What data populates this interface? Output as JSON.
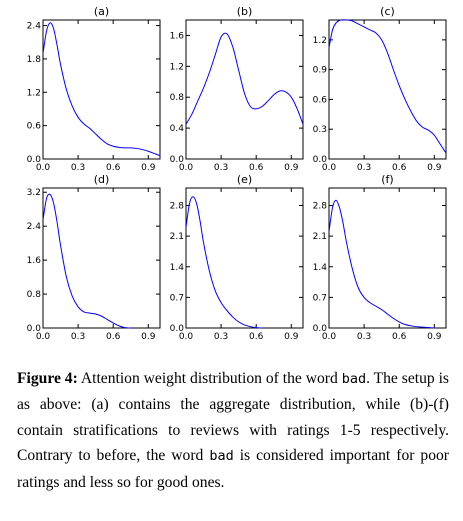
{
  "chart_data": [
    {
      "type": "line",
      "title": "(a)",
      "xlim": [
        0,
        1
      ],
      "ylim": [
        0,
        2.5
      ],
      "xticks": [
        "0.0",
        "0.3",
        "0.6",
        "0.9"
      ],
      "yticks": [
        "0.0",
        "0.6",
        "1.2",
        "1.8",
        "2.4"
      ],
      "series": [
        {
          "color": "#0000ff",
          "x": [
            0,
            0.03,
            0.06,
            0.09,
            0.12,
            0.15,
            0.2,
            0.25,
            0.3,
            0.35,
            0.4,
            0.45,
            0.5,
            0.55,
            0.6,
            0.65,
            0.7,
            0.75,
            0.8,
            0.85,
            0.9,
            0.95,
            1.0
          ],
          "y": [
            1.9,
            2.3,
            2.45,
            2.35,
            2.05,
            1.7,
            1.25,
            0.95,
            0.75,
            0.63,
            0.55,
            0.45,
            0.35,
            0.27,
            0.23,
            0.21,
            0.2,
            0.2,
            0.19,
            0.17,
            0.14,
            0.1,
            0.06
          ]
        }
      ]
    },
    {
      "type": "line",
      "title": "(b)",
      "xlim": [
        0,
        1
      ],
      "ylim": [
        0,
        1.8
      ],
      "xticks": [
        "0.0",
        "0.3",
        "0.6",
        "0.9"
      ],
      "yticks": [
        "0.0",
        "0.4",
        "0.8",
        "1.2",
        "1.6"
      ],
      "series": [
        {
          "color": "#0000ff",
          "x": [
            0,
            0.05,
            0.1,
            0.15,
            0.2,
            0.25,
            0.3,
            0.35,
            0.4,
            0.45,
            0.5,
            0.55,
            0.6,
            0.65,
            0.7,
            0.75,
            0.8,
            0.85,
            0.9,
            0.95,
            1.0
          ],
          "y": [
            0.45,
            0.58,
            0.75,
            0.92,
            1.12,
            1.35,
            1.58,
            1.62,
            1.45,
            1.15,
            0.85,
            0.68,
            0.65,
            0.68,
            0.75,
            0.83,
            0.88,
            0.87,
            0.8,
            0.65,
            0.45
          ]
        }
      ]
    },
    {
      "type": "line",
      "title": "(c)",
      "xlim": [
        0,
        1
      ],
      "ylim": [
        0,
        1.4
      ],
      "xticks": [
        "0.0",
        "0.3",
        "0.6",
        "0.9"
      ],
      "yticks": [
        "0.0",
        "0.3",
        "0.6",
        "0.9",
        "1.2"
      ],
      "series": [
        {
          "color": "#0000ff",
          "x": [
            0,
            0.03,
            0.06,
            0.1,
            0.15,
            0.2,
            0.25,
            0.3,
            0.35,
            0.4,
            0.45,
            0.5,
            0.55,
            0.6,
            0.65,
            0.7,
            0.75,
            0.8,
            0.85,
            0.9,
            0.95,
            1.0
          ],
          "y": [
            1.12,
            1.3,
            1.37,
            1.4,
            1.4,
            1.39,
            1.36,
            1.33,
            1.3,
            1.27,
            1.2,
            1.07,
            0.9,
            0.74,
            0.6,
            0.48,
            0.38,
            0.32,
            0.29,
            0.24,
            0.15,
            0.06
          ]
        }
      ]
    },
    {
      "type": "line",
      "title": "(d)",
      "xlim": [
        0,
        1
      ],
      "ylim": [
        0,
        3.3
      ],
      "xticks": [
        "0.0",
        "0.3",
        "0.6",
        "0.9"
      ],
      "yticks": [
        "0.0",
        "0.8",
        "1.6",
        "2.4",
        "3.2"
      ],
      "series": [
        {
          "color": "#0000ff",
          "x": [
            0,
            0.03,
            0.06,
            0.09,
            0.12,
            0.15,
            0.2,
            0.25,
            0.3,
            0.35,
            0.4,
            0.45,
            0.5,
            0.55,
            0.6,
            0.65,
            0.7,
            0.75
          ],
          "y": [
            2.55,
            3.05,
            3.15,
            2.95,
            2.5,
            1.95,
            1.2,
            0.75,
            0.5,
            0.38,
            0.35,
            0.33,
            0.28,
            0.2,
            0.12,
            0.05,
            0.01,
            0
          ]
        }
      ]
    },
    {
      "type": "line",
      "title": "(e)",
      "xlim": [
        0,
        1
      ],
      "ylim": [
        0,
        3.2
      ],
      "xticks": [
        "0.0",
        "0.3",
        "0.6",
        "0.9"
      ],
      "yticks": [
        "0.0",
        "0.7",
        "1.4",
        "2.1",
        "2.8"
      ],
      "series": [
        {
          "color": "#0000ff",
          "x": [
            0,
            0.03,
            0.06,
            0.09,
            0.12,
            0.15,
            0.2,
            0.25,
            0.3,
            0.35,
            0.4,
            0.45,
            0.5,
            0.55,
            0.6,
            0.65
          ],
          "y": [
            2.3,
            2.85,
            3.0,
            2.85,
            2.45,
            1.95,
            1.3,
            0.85,
            0.58,
            0.4,
            0.25,
            0.14,
            0.07,
            0.03,
            0.01,
            0
          ]
        }
      ]
    },
    {
      "type": "line",
      "title": "(f)",
      "xlim": [
        0,
        1
      ],
      "ylim": [
        0,
        3.2
      ],
      "xticks": [
        "0.0",
        "0.3",
        "0.6",
        "0.9"
      ],
      "yticks": [
        "0.0",
        "0.7",
        "1.4",
        "2.1",
        "2.8"
      ],
      "series": [
        {
          "color": "#0000ff",
          "x": [
            0,
            0.03,
            0.06,
            0.09,
            0.12,
            0.15,
            0.2,
            0.25,
            0.3,
            0.35,
            0.4,
            0.45,
            0.5,
            0.55,
            0.6,
            0.65,
            0.7,
            0.75,
            0.8,
            0.85,
            0.9
          ],
          "y": [
            2.2,
            2.75,
            2.92,
            2.75,
            2.4,
            1.95,
            1.35,
            0.92,
            0.7,
            0.58,
            0.5,
            0.42,
            0.32,
            0.22,
            0.14,
            0.08,
            0.05,
            0.03,
            0.02,
            0.01,
            0
          ]
        }
      ]
    }
  ],
  "caption": {
    "label": "Figure 4:",
    "text_1": " Attention weight distribution of the word ",
    "code_1": "bad",
    "text_2": ". The setup is as above: (a) contains the aggregate distribution, while (b)-(f) contain stratifications to reviews with ratings 1-5 respectively. Contrary to before, the word ",
    "code_2": "bad",
    "text_3": " is considered important for poor ratings and less so for good ones."
  }
}
